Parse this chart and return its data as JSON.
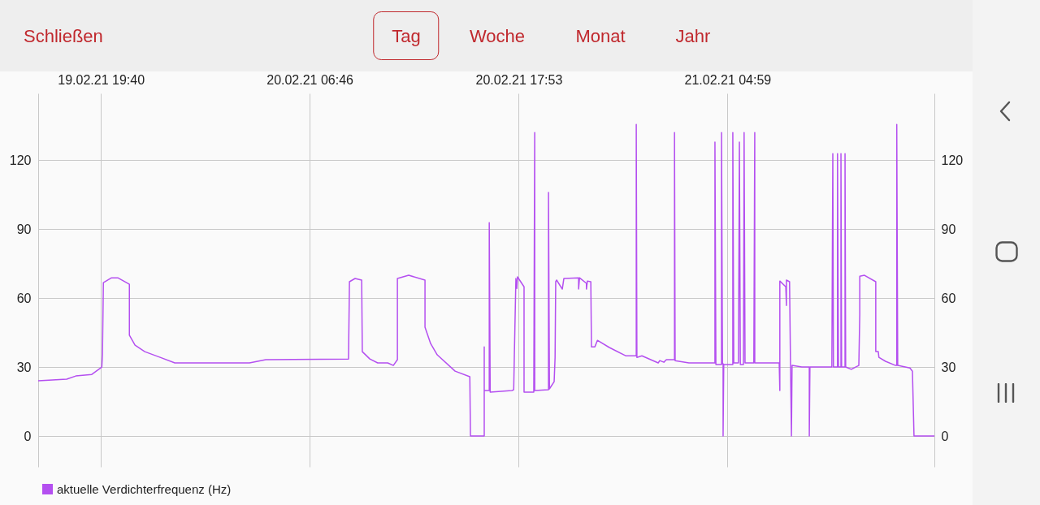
{
  "chart_data": {
    "type": "line",
    "annotations": [
      "Schließen",
      "Tag",
      "Woche",
      "Monat",
      "Jahr"
    ],
    "x": [
      "--02-19T16:20",
      "--02-19T17:51",
      "--02-19T18:20",
      "--02-19T19:11",
      "--02-19T19:43",
      "--02-19T19:45",
      "--02-19T19:48",
      "--02-19T20:14",
      "--02-19T20:34",
      "--02-19T21:11",
      "--02-19T21:11",
      "--02-19T21:29",
      "--02-19T22:00",
      "--02-19T22:49",
      "--02-19T23:36",
      "--02-20T03:34",
      "--02-20T04:26",
      "--02-20T08:50",
      "--02-20T08:53",
      "--02-20T09:11",
      "--02-20T09:32",
      "--02-20T09:34",
      "--02-20T09:58",
      "--02-20T10:23",
      "--02-20T10:55",
      "--02-20T11:13",
      "--02-20T11:26",
      "--02-20T11:26",
      "--02-20T12:02",
      "--02-20T12:54",
      "--02-20T12:54",
      "--02-20T13:12",
      "--02-20T13:33",
      "--02-20T14:30",
      "--02-20T15:17",
      "--02-20T15:19",
      "--02-20T16:03",
      "--02-20T16:03",
      "--02-20T16:03",
      "--02-20T16:19",
      "--02-20T16:19",
      "--02-20T16:22",
      "--02-20T17:31",
      "--02-20T17:37",
      "--02-20T17:39",
      "--02-20T17:44",
      "--02-20T17:47",
      "--02-20T17:49",
      "--02-20T18:10",
      "--02-20T18:10",
      "--02-20T18:41",
      "--02-20T18:44",
      "--02-20T18:44",
      "--02-20T19:28",
      "--02-20T19:28",
      "--02-20T19:31",
      "--02-20T19:46",
      "--02-20T19:49",
      "--02-20T19:51",
      "--02-20T19:54",
      "--02-20T20:12",
      "--02-20T20:17",
      "--02-20T21:04",
      "--02-20T21:04",
      "--02-20T21:07",
      "--02-20T21:29",
      "--02-20T21:29",
      "--02-20T21:32",
      "--02-20T21:43",
      "--02-20T21:45",
      "--02-20T21:56",
      "--02-20T22:04",
      "--02-20T22:42",
      "--02-20T23:34",
      "--02-21T00:08",
      "--02-21T00:08",
      "--02-21T00:10",
      "--02-21T00:26",
      "--02-21T01:18",
      "--02-21T01:23",
      "--02-21T01:36",
      "--02-21T01:44",
      "--02-21T02:10",
      "--02-21T02:10",
      "--02-21T02:12",
      "--02-21T02:56",
      "--02-21T04:19",
      "--02-21T04:19",
      "--02-21T04:22",
      "--02-21T04:40",
      "--02-21T04:40",
      "--02-21T04:43",
      "--02-21T04:45",
      "--02-21T04:45",
      "--02-21T04:47",
      "--02-21T05:16",
      "--02-21T05:16",
      "--02-21T05:19",
      "--02-21T05:34",
      "--02-21T05:37",
      "--02-21T05:40",
      "--02-21T05:50",
      "--02-21T05:52",
      "--02-21T05:55",
      "--02-21T06:23",
      "--02-21T06:26",
      "--02-21T06:26",
      "--02-21T07:44",
      "--02-21T07:46",
      "--02-21T07:46",
      "--02-21T08:05",
      "--02-21T08:07",
      "--02-21T08:07",
      "--02-21T08:17",
      "--02-21T08:20",
      "--02-21T08:23",
      "--02-21T08:25",
      "--02-21T08:56",
      "--02-21T09:20",
      "--02-21T09:20",
      "--02-21T09:22",
      "--02-21T10:32",
      "--02-21T10:35",
      "--02-21T10:37",
      "--02-21T10:50",
      "--02-21T10:50",
      "--02-21T10:53",
      "--02-21T11:01",
      "--02-21T11:01",
      "--02-21T11:03",
      "--02-21T11:14",
      "--02-21T11:14",
      "--02-21T11:16",
      "--02-21T11:34",
      "--02-21T11:58",
      "--02-21T12:01",
      "--02-21T12:01",
      "--02-21T12:16",
      "--02-21T12:52",
      "--02-21T12:52",
      "--02-21T13:00",
      "--02-21T13:02",
      "--02-21T13:23",
      "--02-21T13:55",
      "--02-21T13:59",
      "--02-21T13:59",
      "--02-21T14:02",
      "--02-21T14:41",
      "--02-21T14:49",
      "--02-21T14:54",
      "--02-21T15:59"
    ],
    "series": [
      {
        "name": "aktuelle Verdichterfrequenz (Hz)",
        "color": "#b44ff0",
        "values": [
          24.0,
          24.7,
          26.1,
          26.8,
          30,
          35.3,
          66.7,
          68.8,
          68.8,
          66,
          43.8,
          39.5,
          36.7,
          34.2,
          31.8,
          31.8,
          33.2,
          33.5,
          67.1,
          68.5,
          67.8,
          36.7,
          33.5,
          31.8,
          31.8,
          30.7,
          33.2,
          68.5,
          69.9,
          67.8,
          47.3,
          40.2,
          35.3,
          28.2,
          25.8,
          0,
          0,
          38.8,
          19.8,
          19.8,
          92.8,
          19.1,
          19.8,
          20.1,
          34.9,
          68.5,
          64.2,
          69.2,
          64.9,
          19.1,
          19.1,
          132,
          19.8,
          20.1,
          105.9,
          20.5,
          23.6,
          34.2,
          67.1,
          67.8,
          63.9,
          68.5,
          68.8,
          63.9,
          68.8,
          66.4,
          63.9,
          67.4,
          67.1,
          38.8,
          38.8,
          41.6,
          38.5,
          34.9,
          34.9,
          135.5,
          34.2,
          34.9,
          31.8,
          32.8,
          32.1,
          33.2,
          33.2,
          132,
          32.8,
          31.8,
          31.8,
          127.8,
          31.1,
          31.1,
          132,
          31.4,
          31.4,
          0,
          31.1,
          31.1,
          132,
          31.8,
          31.8,
          127.8,
          31.1,
          31.1,
          132,
          31.8,
          31.8,
          132,
          31.8,
          31.8,
          19.8,
          67.4,
          64.9,
          56.8,
          67.8,
          67.1,
          30.7,
          0,
          30.7,
          30,
          30,
          0,
          30,
          30,
          122.8,
          30,
          30,
          122.8,
          30,
          30,
          122.8,
          30,
          30,
          122.8,
          30,
          29.0,
          30.7,
          52.9,
          69.5,
          69.9,
          67.1,
          36.7,
          36.7,
          34.2,
          32.5,
          30.7,
          30.7,
          135.5,
          30.7,
          29.6,
          28.2,
          0,
          0
        ]
      }
    ],
    "xlim": [
      "--02-19T16:20",
      "--02-21T15:59"
    ],
    "xticks": [
      {
        "value": "--02-19T19:40",
        "label": "19.02.21 19:40"
      },
      {
        "value": "--02-20T06:46",
        "label": "20.02.21 06:46"
      },
      {
        "value": "--02-20T17:53",
        "label": "20.02.21 17:53"
      },
      {
        "value": "--02-21T04:59",
        "label": "21.02.21 04:59"
      }
    ],
    "ylim": [
      -13.4,
      149
    ],
    "yticks": [
      0,
      30,
      60,
      90,
      120
    ],
    "y2lim": [
      -13.4,
      149
    ],
    "y2ticks": [
      0,
      30,
      60,
      90,
      120
    ],
    "grid": true,
    "legend": "bottom left"
  }
}
